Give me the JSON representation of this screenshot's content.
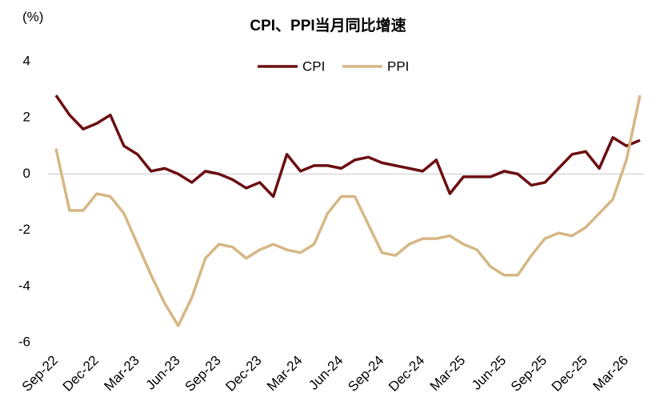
{
  "chart_data": {
    "type": "line",
    "title": "CPI、PPI当月同比增速",
    "y_label": "(%)",
    "categories": [
      "Sep-22",
      null,
      null,
      "Dec-22",
      null,
      null,
      "Mar-23",
      null,
      null,
      "Jun-23",
      null,
      null,
      "Sep-23",
      null,
      null,
      "Dec-23",
      null,
      null,
      "Mar-24",
      null,
      null,
      "Jun-24",
      null,
      null,
      "Sep-24",
      null,
      null,
      "Dec-24",
      null,
      null,
      "Mar-25",
      null,
      null,
      "Jun-25",
      null,
      null,
      "Sep-25",
      null,
      null,
      "Dec-25",
      null,
      null,
      "Mar-26",
      null
    ],
    "series": [
      {
        "name": "CPI",
        "color": "#6b0f12",
        "values": [
          2.8,
          2.1,
          1.6,
          1.8,
          2.1,
          1.0,
          0.7,
          0.1,
          0.2,
          0.0,
          -0.3,
          0.1,
          0.0,
          -0.2,
          -0.5,
          -0.3,
          -0.8,
          0.7,
          0.1,
          0.3,
          0.3,
          0.2,
          0.5,
          0.6,
          0.4,
          0.3,
          0.2,
          0.1,
          0.5,
          -0.7,
          -0.1,
          -0.1,
          -0.1,
          0.1,
          0.0,
          -0.4,
          -0.3,
          0.2,
          0.7,
          0.8,
          0.2,
          1.3,
          1.0,
          1.2
        ]
      },
      {
        "name": "PPI",
        "color": "#d6b785",
        "values": [
          0.9,
          -1.3,
          -1.3,
          -0.7,
          -0.8,
          -1.4,
          -2.5,
          -3.6,
          -4.6,
          -5.4,
          -4.4,
          -3.0,
          -2.5,
          -2.6,
          -3.0,
          -2.7,
          -2.5,
          -2.7,
          -2.8,
          -2.5,
          -1.4,
          -0.8,
          -0.8,
          -1.8,
          -2.8,
          -2.9,
          -2.5,
          -2.3,
          -2.3,
          -2.2,
          -2.5,
          -2.7,
          -3.3,
          -3.6,
          -3.6,
          -2.9,
          -2.3,
          -2.1,
          -2.2,
          -1.9,
          -1.4,
          -0.9,
          0.5,
          2.8
        ]
      }
    ],
    "ylim": [
      -6,
      4
    ],
    "yticks": [
      -6,
      -4,
      -2,
      0,
      2,
      4
    ]
  }
}
